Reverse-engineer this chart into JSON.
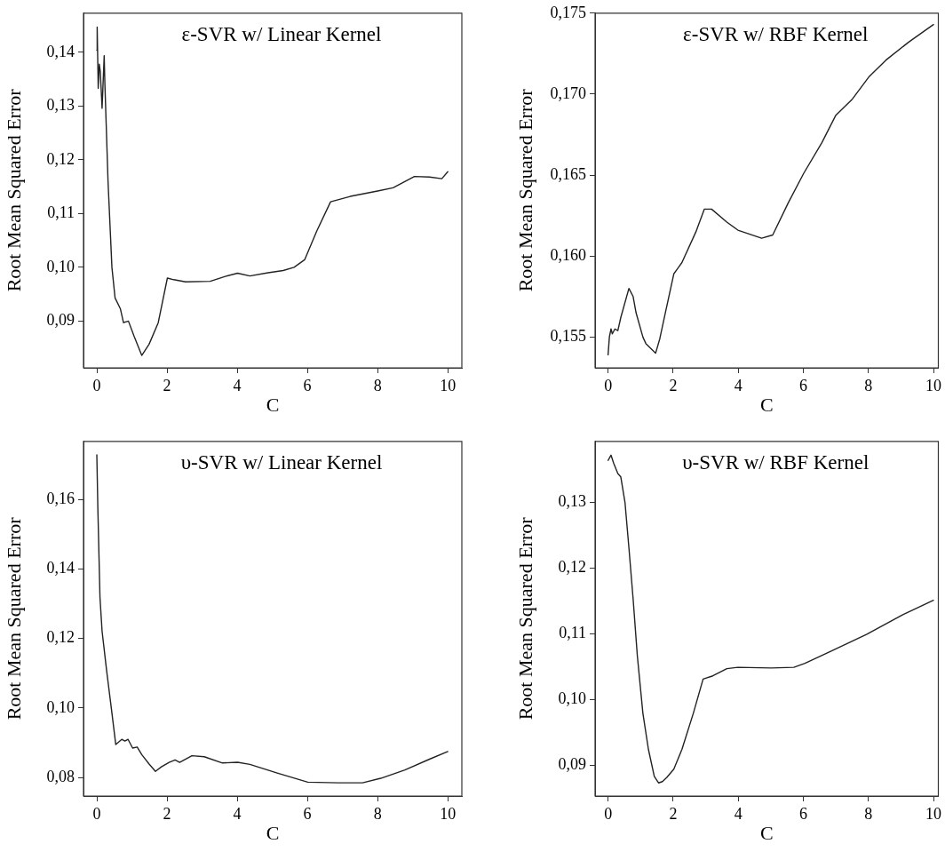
{
  "chart_data": [
    {
      "type": "line",
      "title": "ε-SVR w/ Linear Kernel",
      "xlabel": "C",
      "ylabel": "Root Mean Squared Error",
      "xlim": [
        -0.38,
        10.4
      ],
      "ylim": [
        0.0813,
        0.1473
      ],
      "xticks": [
        0,
        2,
        4,
        6,
        8,
        10
      ],
      "yticks": [
        {
          "value": 0.09,
          "label": "0,09"
        },
        {
          "value": 0.1,
          "label": "0,10"
        },
        {
          "value": 0.11,
          "label": "0,11"
        },
        {
          "value": 0.12,
          "label": "0,12"
        },
        {
          "value": 0.13,
          "label": "0,13"
        },
        {
          "value": 0.14,
          "label": "0,14"
        }
      ],
      "grid": false,
      "legend": false,
      "series": [
        {
          "color": "#222222",
          "x": [
            0,
            0.01,
            0.04,
            0.07,
            0.1,
            0.15,
            0.21,
            0.23,
            0.32,
            0.43,
            0.52,
            0.67,
            0.76,
            0.9,
            1.06,
            1.28,
            1.49,
            1.75,
            2.01,
            2.19,
            2.53,
            3.23,
            3.66,
            4.01,
            4.36,
            4.88,
            5.31,
            5.62,
            5.92,
            6.27,
            6.66,
            7.22,
            8.0,
            8.44,
            9.05,
            9.48,
            9.83,
            10.0
          ],
          "values": [
            0.1404,
            0.1447,
            0.1333,
            0.1378,
            0.1364,
            0.1296,
            0.1394,
            0.1341,
            0.1159,
            0.1,
            0.0943,
            0.0923,
            0.0897,
            0.09,
            0.0872,
            0.0836,
            0.0857,
            0.0897,
            0.098,
            0.0977,
            0.0973,
            0.0974,
            0.0983,
            0.0989,
            0.0984,
            0.099,
            0.0994,
            0.1,
            0.1014,
            0.1068,
            0.1122,
            0.1132,
            0.1142,
            0.1148,
            0.1169,
            0.1168,
            0.1165,
            0.1178
          ]
        }
      ]
    },
    {
      "type": "line",
      "title": "ε-SVR w/ RBF Kernel",
      "xlabel": "C",
      "ylabel": "Root Mean Squared Error",
      "xlim": [
        -0.4,
        10.15
      ],
      "ylim": [
        0.1531,
        0.175
      ],
      "xticks": [
        0,
        2,
        4,
        6,
        8,
        10
      ],
      "yticks": [
        {
          "value": 0.155,
          "label": "0,155"
        },
        {
          "value": 0.16,
          "label": "0,160"
        },
        {
          "value": 0.165,
          "label": "0,165"
        },
        {
          "value": 0.17,
          "label": "0,170"
        },
        {
          "value": 0.175,
          "label": "0,175"
        }
      ],
      "grid": false,
      "legend": false,
      "series": [
        {
          "color": "#222222",
          "x": [
            0,
            0.04,
            0.09,
            0.13,
            0.21,
            0.3,
            0.39,
            0.64,
            0.77,
            0.86,
            1.07,
            1.16,
            1.46,
            1.59,
            1.76,
            2.02,
            2.27,
            2.7,
            2.96,
            3.18,
            3.65,
            3.99,
            4.72,
            5.06,
            5.54,
            6.01,
            6.57,
            7.0,
            7.51,
            8.03,
            8.54,
            9.23,
            10.0
          ],
          "values": [
            0.1539,
            0.155,
            0.1555,
            0.1552,
            0.1555,
            0.1554,
            0.1562,
            0.158,
            0.1575,
            0.1565,
            0.155,
            0.1546,
            0.154,
            0.1549,
            0.1565,
            0.1589,
            0.1596,
            0.1615,
            0.1629,
            0.1629,
            0.1621,
            0.1616,
            0.1611,
            0.1613,
            0.1633,
            0.1651,
            0.167,
            0.1687,
            0.1697,
            0.1711,
            0.1721,
            0.1732,
            0.1743
          ]
        }
      ]
    },
    {
      "type": "line",
      "title": "υ-SVR w/ Linear Kernel",
      "xlabel": "C",
      "ylabel": "Root Mean Squared Error",
      "xlim": [
        -0.38,
        10.4
      ],
      "ylim": [
        0.0747,
        0.1767
      ],
      "xticks": [
        0,
        2,
        4,
        6,
        8,
        10
      ],
      "yticks": [
        {
          "value": 0.08,
          "label": "0,08"
        },
        {
          "value": 0.1,
          "label": "0,10"
        },
        {
          "value": 0.12,
          "label": "0,12"
        },
        {
          "value": 0.14,
          "label": "0,14"
        },
        {
          "value": 0.16,
          "label": "0,16"
        }
      ],
      "grid": false,
      "legend": false,
      "series": [
        {
          "color": "#222222",
          "x": [
            0,
            0.03,
            0.09,
            0.15,
            0.28,
            0.41,
            0.54,
            0.71,
            0.8,
            0.89,
            1.02,
            1.15,
            1.28,
            1.49,
            1.67,
            1.84,
            2.06,
            2.23,
            2.36,
            2.71,
            3.06,
            3.58,
            4.01,
            4.36,
            5.14,
            6.01,
            6.88,
            7.57,
            8.09,
            8.78,
            9.48,
            10.0
          ],
          "values": [
            0.1728,
            0.1572,
            0.1318,
            0.1221,
            0.1107,
            0.1002,
            0.0895,
            0.091,
            0.0905,
            0.091,
            0.0885,
            0.0888,
            0.0866,
            0.0839,
            0.0818,
            0.0831,
            0.0844,
            0.0851,
            0.0844,
            0.0863,
            0.086,
            0.0842,
            0.0844,
            0.0838,
            0.0813,
            0.0787,
            0.0785,
            0.0785,
            0.0798,
            0.0822,
            0.0853,
            0.0875
          ]
        }
      ]
    },
    {
      "type": "line",
      "title": "υ-SVR w/ RBF Kernel",
      "xlabel": "C",
      "ylabel": "Root Mean Squared Error",
      "xlim": [
        -0.4,
        10.15
      ],
      "ylim": [
        0.0853,
        0.1393
      ],
      "xticks": [
        0,
        2,
        4,
        6,
        8,
        10
      ],
      "yticks": [
        {
          "value": 0.09,
          "label": "0,09"
        },
        {
          "value": 0.1,
          "label": "0,10"
        },
        {
          "value": 0.11,
          "label": "0,11"
        },
        {
          "value": 0.12,
          "label": "0,12"
        },
        {
          "value": 0.13,
          "label": "0,13"
        }
      ],
      "grid": false,
      "legend": false,
      "series": [
        {
          "color": "#222222",
          "x": [
            0,
            0.09,
            0.17,
            0.3,
            0.39,
            0.52,
            0.64,
            0.77,
            0.9,
            1.07,
            1.24,
            1.42,
            1.55,
            1.67,
            1.8,
            2.02,
            2.27,
            2.62,
            2.92,
            3.22,
            3.65,
            3.99,
            5.02,
            5.71,
            6.05,
            6.74,
            7.94,
            9.06,
            10.0
          ],
          "values": [
            0.1364,
            0.1372,
            0.136,
            0.1344,
            0.1339,
            0.13,
            0.1231,
            0.1153,
            0.1066,
            0.0979,
            0.0924,
            0.0883,
            0.0873,
            0.0875,
            0.0881,
            0.0894,
            0.0924,
            0.0979,
            0.1031,
            0.1036,
            0.1047,
            0.1049,
            0.1048,
            0.1049,
            0.1055,
            0.1071,
            0.1099,
            0.1129,
            0.1151
          ]
        }
      ]
    }
  ]
}
